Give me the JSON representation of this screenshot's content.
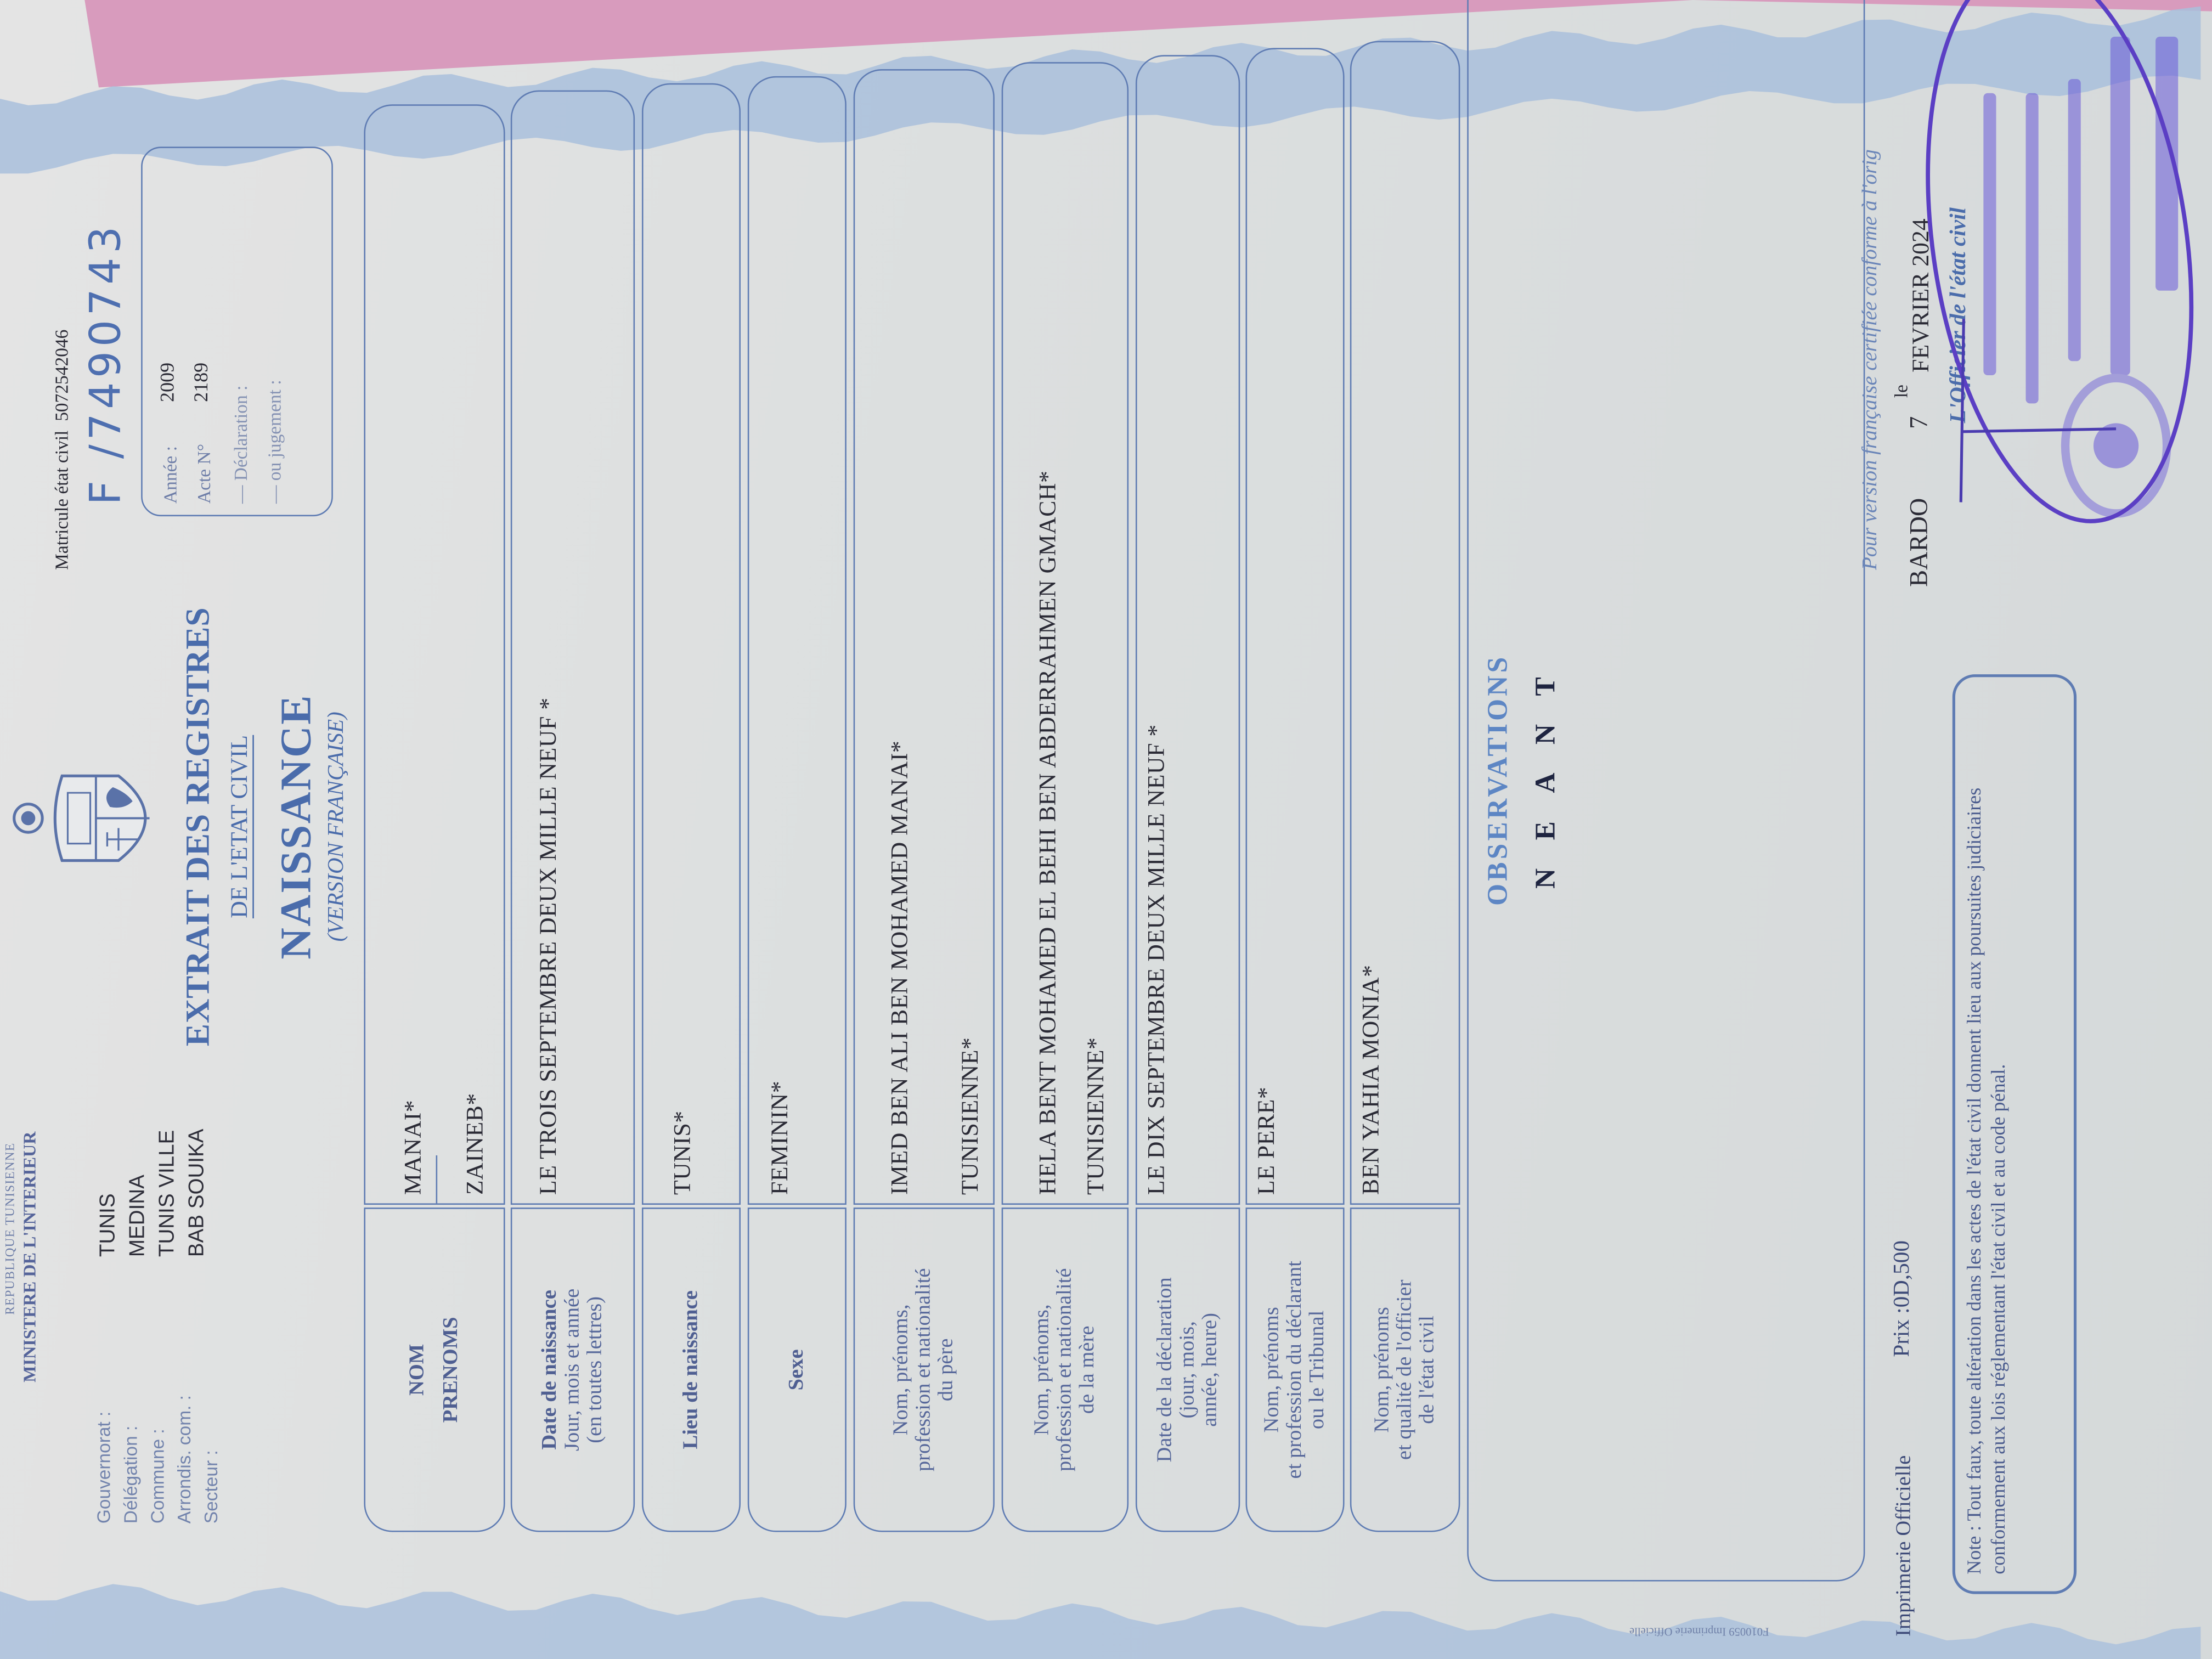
{
  "header": {
    "republic": "REPUBLIQUE TUNISIENNE",
    "ministry": "MINISTERE DE L'INTERIEUR",
    "admin": [
      {
        "label": "Gouvernorat :",
        "value": "TUNIS"
      },
      {
        "label": "Délégation :",
        "value": "MEDINA"
      },
      {
        "label": "Commune :",
        "value": "TUNIS VILLE"
      },
      {
        "label": "Arrondis. com. :",
        "value": "BAB SOUIKA"
      },
      {
        "label": "Secteur :",
        "value": ""
      }
    ],
    "title_line1": "EXTRAIT DES REGISTRES",
    "title_line2": "DE L'ETAT CIVIL",
    "title_main": "NAISSANCE",
    "title_sub": "(VERSION FRANÇAISE)",
    "matricule_label": "Matricule état civil",
    "matricule_value": "5072542046",
    "serial": "F /7490743",
    "acte_box": {
      "annee_label": "Année :",
      "annee_value": "2009",
      "acte_label": "Acte N°",
      "acte_value": "2189",
      "declaration_label": "— Déclaration :",
      "jugement_label": "— ou jugement :"
    }
  },
  "rows": [
    {
      "label": [
        "NOM",
        "PRENOMS"
      ],
      "values": [
        "MANAI*",
        "ZAINEB*"
      ]
    },
    {
      "label": [
        "Date de naissance",
        "Jour, mois et année",
        "(en toutes lettres)"
      ],
      "values": [
        "LE TROIS SEPTEMBRE  DEUX MILLE NEUF *"
      ]
    },
    {
      "label": [
        "Lieu de naissance"
      ],
      "values": [
        "TUNIS*"
      ]
    },
    {
      "label": [
        "Sexe"
      ],
      "values": [
        "FEMININ*"
      ]
    },
    {
      "label": [
        "Nom, prénoms,",
        "profession et nationalité",
        "du père"
      ],
      "values": [
        "IMED BEN ALI BEN MOHAMED MANAI*",
        "TUNISIENNE*"
      ]
    },
    {
      "label": [
        "Nom, prénoms,",
        "profession et nationalité",
        "de la mère"
      ],
      "values": [
        "HELA BENT MOHAMED EL BEHI BEN ABDERRAHMEN GMACH*",
        "TUNISIENNE*"
      ]
    },
    {
      "label": [
        "Date de la déclaration",
        "(jour, mois,",
        "année, heure)"
      ],
      "values": [
        "LE DIX SEPTEMBRE  DEUX MILLE NEUF *"
      ]
    },
    {
      "label": [
        "Nom, prénoms",
        "et profession du déclarant",
        "ou le Tribunal"
      ],
      "values": [
        "LE PERE*"
      ]
    },
    {
      "label": [
        "Nom, prénoms",
        "et qualité de l'officier",
        "de l'état civil"
      ],
      "values": [
        "BEN YAHIA MONIA*"
      ]
    }
  ],
  "observations": {
    "label": "OBSERVATIONS",
    "value": "NEANT"
  },
  "footer": {
    "certification": "Pour version française certifiée conforme à l'orig",
    "printer": "Imprimerie Officielle",
    "price": "Prix :0D,500",
    "place": "BARDO",
    "day": "7",
    "le": "le",
    "date": "FEVRIER 2024",
    "officer": "L'Officier de l'état civil",
    "note": "Note :  Tout faux, toute altération dans les actes de l'état civil donnent lieu aux poursuites judiciaires conformement aux lois réglementant l'état civil et au code pénal.",
    "form_code": "F010059  Imprimerie Officielle"
  },
  "colors": {
    "ink_blue": "#4a6cab",
    "line_blue": "#5f7cb3",
    "stamp_purple": "#5b3fc4",
    "background_pink": "#d89bbd",
    "paper": "#dcdfdf"
  }
}
